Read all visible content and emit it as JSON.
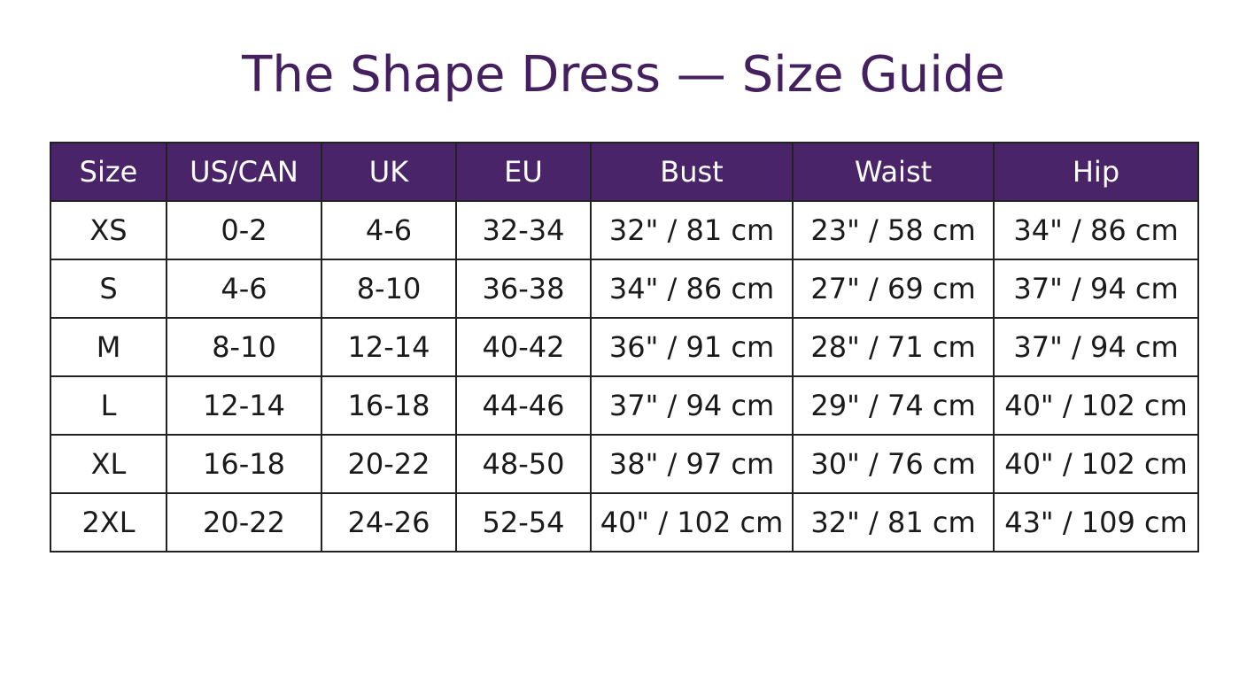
{
  "header": {
    "title": "The Shape Dress — Size Guide"
  },
  "table": {
    "headers": [
      "Size",
      "US/CAN",
      "UK",
      "EU",
      "Bust",
      "Waist",
      "Hip"
    ],
    "rows": [
      [
        "XS",
        "0-2",
        "4-6",
        "32-34",
        "32\" / 81 cm",
        "23\" / 58 cm",
        "34\" / 86 cm"
      ],
      [
        "S",
        "4-6",
        "8-10",
        "36-38",
        "34\" / 86 cm",
        "27\" / 69 cm",
        "37\" / 94 cm"
      ],
      [
        "M",
        "8-10",
        "12-14",
        "40-42",
        "36\" / 91 cm",
        "28\" / 71 cm",
        "37\" / 94 cm"
      ],
      [
        "L",
        "12-14",
        "16-18",
        "44-46",
        "37\" / 94 cm",
        "29\" / 74 cm",
        "40\" / 102 cm"
      ],
      [
        "XL",
        "16-18",
        "20-22",
        "48-50",
        "38\" / 97 cm",
        "30\" / 76 cm",
        "40\" / 102 cm"
      ],
      [
        "2XL",
        "20-22",
        "24-26",
        "52-54",
        "40\" / 102 cm",
        "32\" / 81 cm",
        "43\" / 109 cm"
      ]
    ]
  }
}
